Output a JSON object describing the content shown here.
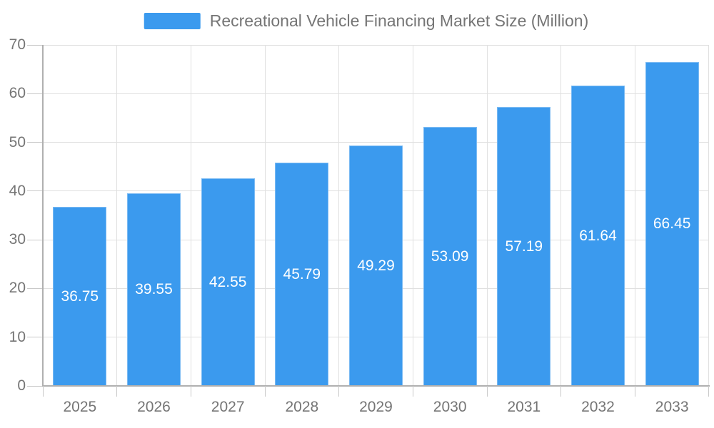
{
  "legend": {
    "label": "Recreational Vehicle Financing Market Size (Million)"
  },
  "colors": {
    "bar": "#3b9aee",
    "value_label": "#ffffff",
    "axis_text": "#757575",
    "legend_text": "#757575",
    "grid": "#e0e0e0",
    "tick": "#c9c9c9",
    "axis_line": "#b0b0b0",
    "background": "#ffffff"
  },
  "chart_data": {
    "type": "bar",
    "title": "Recreational Vehicle Financing Market Size (Million)",
    "categories": [
      "2025",
      "2026",
      "2027",
      "2028",
      "2029",
      "2030",
      "2031",
      "2032",
      "2033"
    ],
    "values": [
      36.75,
      39.55,
      42.55,
      45.79,
      49.29,
      53.09,
      57.19,
      61.64,
      66.45
    ],
    "value_labels": [
      "36.75",
      "39.55",
      "42.55",
      "45.79",
      "49.29",
      "53.09",
      "57.19",
      "61.64",
      "66.45"
    ],
    "xlabel": "",
    "ylabel": "",
    "ylim": [
      0,
      70
    ],
    "y_ticks": [
      0,
      10,
      20,
      30,
      40,
      50,
      60,
      70
    ],
    "grid": true,
    "legend_position": "top",
    "value_label_position": "center-of-bar"
  }
}
